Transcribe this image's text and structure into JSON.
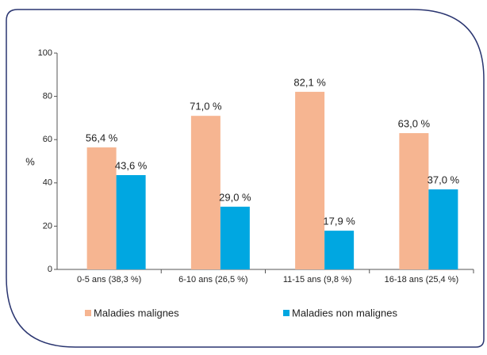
{
  "chart_data": {
    "type": "bar",
    "categories": [
      "0-5 ans (38,3 %)",
      "6-10 ans (26,5 %)",
      "11-15 ans (9,8 %)",
      "16-18 ans (25,4 %)"
    ],
    "series": [
      {
        "name": "Maladies malignes",
        "color": "#f6b591",
        "values": [
          56.4,
          71.0,
          82.1,
          63.0
        ],
        "value_labels": [
          "56,4 %",
          "71,0 %",
          "82,1 %",
          "63,0 %"
        ]
      },
      {
        "name": "Maladies non malignes",
        "color": "#00a7e1",
        "values": [
          43.6,
          29.0,
          17.9,
          37.0
        ],
        "value_labels": [
          "43,6 %",
          "29,0 %",
          "17,9 %",
          "37,0 %"
        ]
      }
    ],
    "ylabel": "%",
    "ylim": [
      0,
      100
    ],
    "yticks": [
      0,
      20,
      40,
      60,
      80,
      100
    ],
    "grid": false
  }
}
